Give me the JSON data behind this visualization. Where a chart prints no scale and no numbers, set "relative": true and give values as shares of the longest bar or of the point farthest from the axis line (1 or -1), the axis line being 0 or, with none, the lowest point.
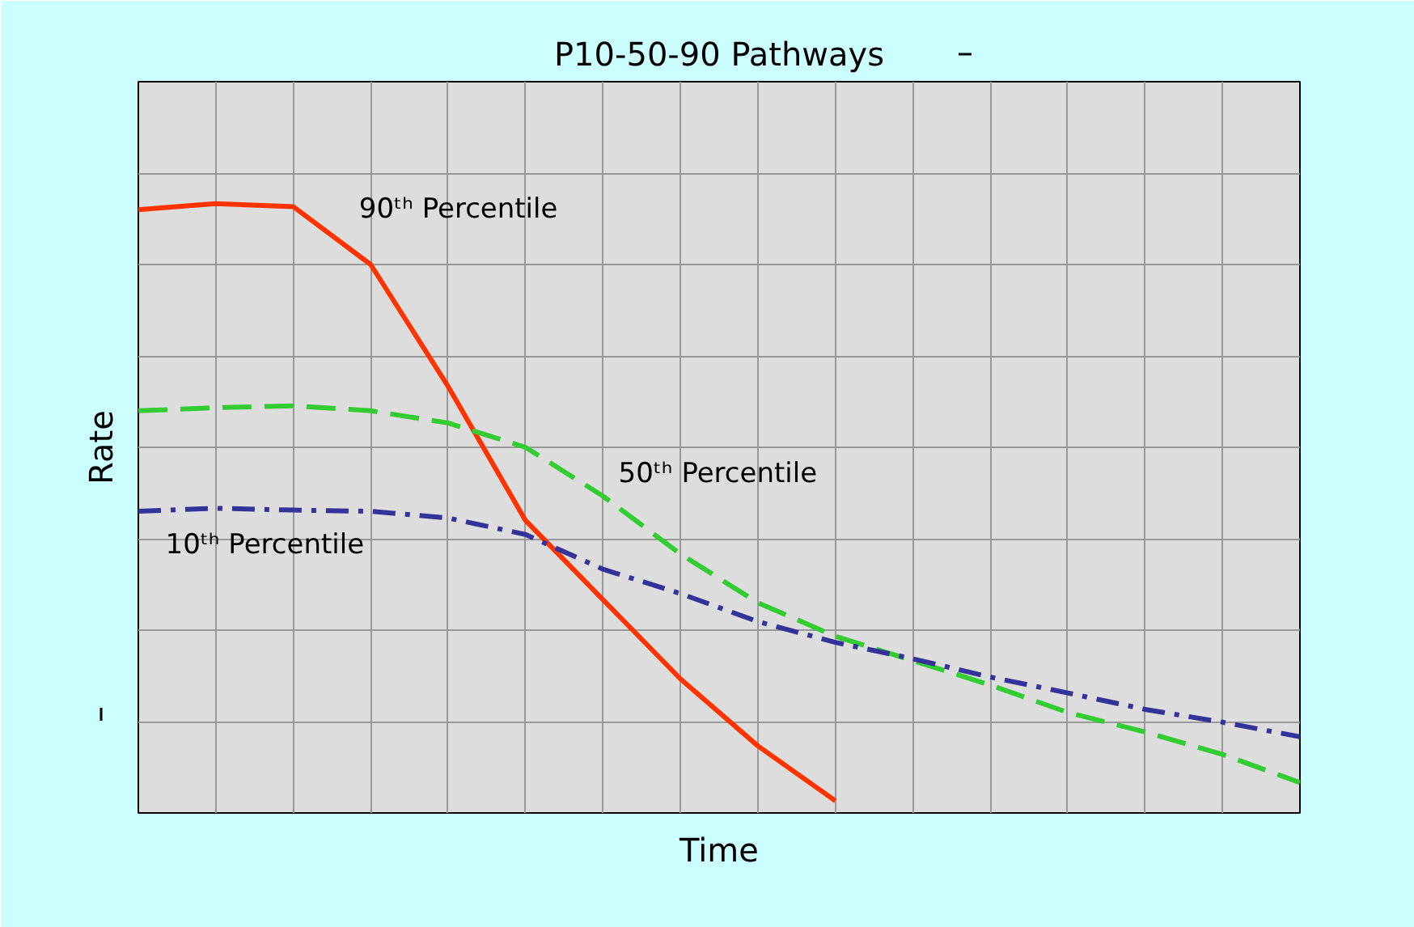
{
  "chart_data": {
    "type": "line",
    "title": "P10-50-90 Pathways",
    "xlabel": "Time",
    "ylabel": "Rate",
    "relative": true,
    "grid": true,
    "legend": false,
    "categories": [
      null,
      null,
      null,
      null,
      null,
      null,
      null,
      null,
      null,
      null,
      null,
      null,
      null,
      null,
      null,
      null
    ],
    "series": [
      {
        "name": "90ᵗʰ Percentile",
        "color": "#ff3300",
        "line_style": "solid",
        "values": [
          0.99,
          1.0,
          0.995,
          0.9,
          0.7,
          0.48,
          0.35,
          0.22,
          0.11,
          0.02,
          null,
          null,
          null,
          null,
          null,
          null
        ]
      },
      {
        "name": "50ᵗʰ Percentile",
        "color": "#33cc33",
        "line_style": "dashed",
        "values": [
          0.66,
          0.665,
          0.668,
          0.66,
          0.64,
          0.6,
          0.52,
          0.425,
          0.345,
          0.29,
          0.25,
          0.21,
          0.165,
          0.133,
          0.096,
          0.05
        ]
      },
      {
        "name": "10ᵗʰ Percentile",
        "color": "#333399",
        "line_style": "dashdot",
        "values": [
          0.495,
          0.5,
          0.497,
          0.495,
          0.484,
          0.457,
          0.4,
          0.36,
          0.314,
          0.28,
          0.253,
          0.223,
          0.197,
          0.17,
          0.149,
          0.125
        ]
      }
    ]
  }
}
